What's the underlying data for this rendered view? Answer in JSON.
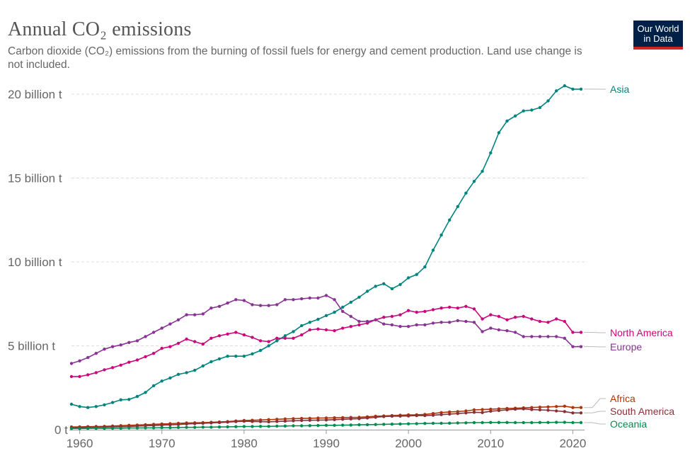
{
  "header": {
    "title": "Annual CO₂ emissions",
    "subtitle": "Carbon dioxide (CO₂) emissions from the burning of fossil fuels for energy and cement production. Land use change is not included.",
    "logo_line1": "Our World",
    "logo_line2": "in Data"
  },
  "chart_data": {
    "type": "line",
    "title": "Annual CO₂ emissions",
    "xlim": [
      1959,
      2021
    ],
    "ylim": [
      0,
      21000000000
    ],
    "grid": "horizontal dashed",
    "legend": "right (line-end labels)",
    "x_ticks": [
      {
        "value": 1960,
        "label": "1960"
      },
      {
        "value": 1970,
        "label": "1970"
      },
      {
        "value": 1980,
        "label": "1980"
      },
      {
        "value": 1990,
        "label": "1990"
      },
      {
        "value": 2000,
        "label": "2000"
      },
      {
        "value": 2010,
        "label": "2010"
      },
      {
        "value": 2020,
        "label": "2020"
      }
    ],
    "y_ticks": [
      {
        "value": 0,
        "label": "0 t"
      },
      {
        "value": 5000000000,
        "label": "5 billion t"
      },
      {
        "value": 10000000000,
        "label": "10 billion t"
      },
      {
        "value": 15000000000,
        "label": "15 billion t"
      },
      {
        "value": 20000000000,
        "label": "20 billion t"
      }
    ],
    "x": [
      1959,
      1960,
      1961,
      1962,
      1963,
      1964,
      1965,
      1966,
      1967,
      1968,
      1969,
      1970,
      1971,
      1972,
      1973,
      1974,
      1975,
      1976,
      1977,
      1978,
      1979,
      1980,
      1981,
      1982,
      1983,
      1984,
      1985,
      1986,
      1987,
      1988,
      1989,
      1990,
      1991,
      1992,
      1993,
      1994,
      1995,
      1996,
      1997,
      1998,
      1999,
      2000,
      2001,
      2002,
      2003,
      2004,
      2005,
      2006,
      2007,
      2008,
      2009,
      2010,
      2011,
      2012,
      2013,
      2014,
      2015,
      2016,
      2017,
      2018,
      2019,
      2020,
      2021
    ],
    "series": [
      {
        "name": "Asia",
        "color": "#00847e",
        "values": [
          1.52,
          1.38,
          1.32,
          1.38,
          1.48,
          1.62,
          1.78,
          1.8,
          1.98,
          2.22,
          2.62,
          2.9,
          3.08,
          3.3,
          3.4,
          3.54,
          3.8,
          4.05,
          4.22,
          4.38,
          4.38,
          4.38,
          4.52,
          4.72,
          5.0,
          5.3,
          5.6,
          5.85,
          6.2,
          6.4,
          6.58,
          6.8,
          7.0,
          7.3,
          7.6,
          7.9,
          8.25,
          8.55,
          8.7,
          8.4,
          8.65,
          9.05,
          9.25,
          9.7,
          10.7,
          11.6,
          12.5,
          13.3,
          14.1,
          14.8,
          15.4,
          16.5,
          17.7,
          18.4,
          18.7,
          19.0,
          19.05,
          19.2,
          19.6,
          20.2,
          20.5,
          20.3,
          20.3
        ]
      },
      {
        "name": "North America",
        "color": "#c9087d",
        "values": [
          3.17,
          3.17,
          3.27,
          3.4,
          3.57,
          3.7,
          3.85,
          4.02,
          4.15,
          4.35,
          4.55,
          4.85,
          4.95,
          5.15,
          5.4,
          5.25,
          5.1,
          5.45,
          5.6,
          5.7,
          5.8,
          5.65,
          5.5,
          5.3,
          5.25,
          5.45,
          5.45,
          5.45,
          5.65,
          5.95,
          6.0,
          5.95,
          5.9,
          6.05,
          6.15,
          6.25,
          6.35,
          6.55,
          6.7,
          6.75,
          6.85,
          7.1,
          7.0,
          7.05,
          7.15,
          7.25,
          7.3,
          7.25,
          7.35,
          7.2,
          6.6,
          6.85,
          6.75,
          6.55,
          6.7,
          6.75,
          6.6,
          6.45,
          6.4,
          6.6,
          6.45,
          5.8,
          5.8
        ]
      },
      {
        "name": "Europe",
        "color": "#883493",
        "values": [
          3.95,
          4.1,
          4.3,
          4.55,
          4.8,
          4.95,
          5.05,
          5.2,
          5.3,
          5.55,
          5.8,
          6.05,
          6.3,
          6.55,
          6.85,
          6.85,
          6.9,
          7.25,
          7.35,
          7.55,
          7.75,
          7.7,
          7.45,
          7.4,
          7.4,
          7.45,
          7.75,
          7.75,
          7.8,
          7.85,
          7.85,
          8.0,
          7.75,
          7.05,
          6.75,
          6.45,
          6.45,
          6.55,
          6.3,
          6.25,
          6.15,
          6.15,
          6.25,
          6.25,
          6.35,
          6.4,
          6.4,
          6.5,
          6.45,
          6.4,
          5.85,
          6.05,
          5.95,
          5.9,
          5.8,
          5.55,
          5.55,
          5.55,
          5.55,
          5.55,
          5.45,
          4.95,
          4.95
        ]
      },
      {
        "name": "Africa",
        "color": "#b13507",
        "values": [
          0.16,
          0.17,
          0.18,
          0.19,
          0.2,
          0.22,
          0.24,
          0.26,
          0.28,
          0.3,
          0.32,
          0.34,
          0.36,
          0.38,
          0.4,
          0.41,
          0.42,
          0.44,
          0.46,
          0.48,
          0.52,
          0.55,
          0.56,
          0.58,
          0.6,
          0.62,
          0.64,
          0.66,
          0.67,
          0.68,
          0.69,
          0.7,
          0.71,
          0.72,
          0.73,
          0.74,
          0.77,
          0.8,
          0.82,
          0.84,
          0.86,
          0.88,
          0.89,
          0.91,
          0.96,
          1.02,
          1.06,
          1.08,
          1.12,
          1.18,
          1.2,
          1.22,
          1.24,
          1.26,
          1.28,
          1.3,
          1.32,
          1.34,
          1.36,
          1.38,
          1.4,
          1.32,
          1.32
        ]
      },
      {
        "name": "South America",
        "color": "#883039",
        "values": [
          0.12,
          0.13,
          0.14,
          0.15,
          0.16,
          0.17,
          0.18,
          0.19,
          0.21,
          0.23,
          0.25,
          0.27,
          0.29,
          0.31,
          0.34,
          0.36,
          0.38,
          0.4,
          0.42,
          0.45,
          0.48,
          0.5,
          0.49,
          0.48,
          0.47,
          0.49,
          0.51,
          0.53,
          0.55,
          0.56,
          0.57,
          0.58,
          0.6,
          0.62,
          0.64,
          0.66,
          0.7,
          0.74,
          0.78,
          0.8,
          0.81,
          0.82,
          0.84,
          0.84,
          0.86,
          0.9,
          0.93,
          0.96,
          1.0,
          1.04,
          1.02,
          1.1,
          1.14,
          1.18,
          1.22,
          1.24,
          1.2,
          1.18,
          1.16,
          1.12,
          1.08,
          1.0,
          1.0
        ]
      },
      {
        "name": "Oceania",
        "color": "#008c4f",
        "values": [
          0.07,
          0.07,
          0.08,
          0.08,
          0.08,
          0.09,
          0.09,
          0.1,
          0.1,
          0.11,
          0.11,
          0.12,
          0.12,
          0.13,
          0.14,
          0.14,
          0.15,
          0.15,
          0.16,
          0.17,
          0.18,
          0.19,
          0.19,
          0.2,
          0.2,
          0.21,
          0.22,
          0.23,
          0.23,
          0.24,
          0.25,
          0.26,
          0.26,
          0.27,
          0.28,
          0.29,
          0.3,
          0.31,
          0.32,
          0.33,
          0.34,
          0.35,
          0.36,
          0.37,
          0.38,
          0.38,
          0.39,
          0.4,
          0.41,
          0.42,
          0.42,
          0.43,
          0.43,
          0.43,
          0.42,
          0.42,
          0.42,
          0.43,
          0.43,
          0.44,
          0.44,
          0.42,
          0.42
        ]
      }
    ]
  }
}
